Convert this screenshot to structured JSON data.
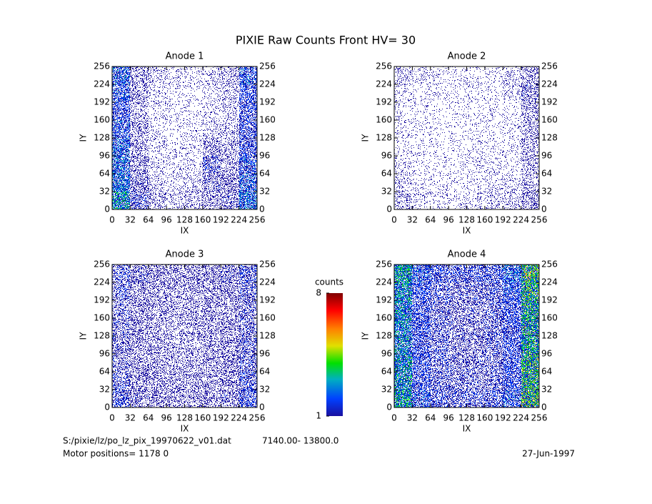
{
  "title": "PIXIE Raw Counts Front HV= 30",
  "chart_data": [
    {
      "type": "heatmap",
      "title": "Anode 1",
      "x_label": "IX",
      "y_label": "IY",
      "xlim": [
        0,
        256
      ],
      "ylim": [
        0,
        256
      ],
      "xticks": [
        0,
        32,
        64,
        96,
        128,
        160,
        192,
        224,
        256
      ],
      "yticks": [
        0,
        32,
        64,
        96,
        128,
        160,
        192,
        224,
        256
      ],
      "zlim": [
        1,
        8
      ],
      "cell_values": [
        [
          1.6,
          0.6,
          0.3,
          0.2,
          0.25,
          0.4,
          0.5,
          1.3
        ],
        [
          1.3,
          0.5,
          0.2,
          0.15,
          0.2,
          0.5,
          0.45,
          1.1
        ],
        [
          1.2,
          0.45,
          0.15,
          0.15,
          0.15,
          0.6,
          0.35,
          1.0
        ],
        [
          1.1,
          0.4,
          0.15,
          0.12,
          0.15,
          0.4,
          0.3,
          0.9
        ],
        [
          1.0,
          0.35,
          0.12,
          0.12,
          0.12,
          0.2,
          0.25,
          0.8
        ],
        [
          0.9,
          0.3,
          0.12,
          0.1,
          0.1,
          0.15,
          0.2,
          0.8
        ],
        [
          1.0,
          0.35,
          0.15,
          0.12,
          0.12,
          0.15,
          0.25,
          0.9
        ],
        [
          1.1,
          0.4,
          0.2,
          0.15,
          0.15,
          0.2,
          0.3,
          1.0
        ]
      ]
    },
    {
      "type": "heatmap",
      "title": "Anode 2",
      "x_label": "IX",
      "y_label": "IY",
      "xlim": [
        0,
        256
      ],
      "ylim": [
        0,
        256
      ],
      "xticks": [
        0,
        32,
        64,
        96,
        128,
        160,
        192,
        224,
        256
      ],
      "yticks": [
        0,
        32,
        64,
        96,
        128,
        160,
        192,
        224,
        256
      ],
      "zlim": [
        1,
        8
      ],
      "cell_values": [
        [
          0.3,
          0.15,
          0.12,
          0.12,
          0.15,
          0.2,
          0.2,
          0.4
        ],
        [
          0.2,
          0.12,
          0.1,
          0.1,
          0.12,
          0.15,
          0.15,
          0.3
        ],
        [
          0.15,
          0.1,
          0.08,
          0.1,
          0.12,
          0.12,
          0.12,
          0.3
        ],
        [
          0.12,
          0.1,
          0.08,
          0.08,
          0.1,
          0.1,
          0.12,
          0.3
        ],
        [
          0.12,
          0.08,
          0.08,
          0.08,
          0.08,
          0.08,
          0.1,
          0.3
        ],
        [
          0.12,
          0.1,
          0.08,
          0.08,
          0.08,
          0.08,
          0.1,
          0.35
        ],
        [
          0.15,
          0.1,
          0.1,
          0.1,
          0.1,
          0.1,
          0.15,
          0.5
        ],
        [
          0.2,
          0.15,
          0.12,
          0.12,
          0.12,
          0.12,
          0.2,
          0.45
        ]
      ]
    },
    {
      "type": "heatmap",
      "title": "Anode 3",
      "x_label": "IX",
      "y_label": "IY",
      "xlim": [
        0,
        256
      ],
      "ylim": [
        0,
        256
      ],
      "xticks": [
        0,
        32,
        64,
        96,
        128,
        160,
        192,
        224,
        256
      ],
      "yticks": [
        0,
        32,
        64,
        96,
        128,
        160,
        192,
        224,
        256
      ],
      "zlim": [
        1,
        8
      ],
      "cell_values": [
        [
          0.7,
          0.5,
          0.45,
          0.4,
          0.4,
          0.45,
          0.5,
          0.8
        ],
        [
          0.6,
          0.45,
          0.4,
          0.4,
          0.4,
          0.4,
          0.45,
          0.7
        ],
        [
          0.55,
          0.45,
          0.4,
          0.35,
          0.35,
          0.4,
          0.45,
          0.6
        ],
        [
          0.55,
          0.45,
          0.4,
          0.35,
          0.35,
          0.4,
          0.45,
          0.6
        ],
        [
          0.55,
          0.45,
          0.4,
          0.35,
          0.35,
          0.4,
          0.45,
          0.55
        ],
        [
          0.55,
          0.45,
          0.4,
          0.35,
          0.35,
          0.4,
          0.4,
          0.55
        ],
        [
          0.6,
          0.45,
          0.4,
          0.4,
          0.4,
          0.4,
          0.45,
          0.6
        ],
        [
          0.6,
          0.5,
          0.45,
          0.4,
          0.4,
          0.45,
          0.5,
          0.7
        ]
      ]
    },
    {
      "type": "heatmap",
      "title": "Anode 4",
      "x_label": "IX",
      "y_label": "IY",
      "xlim": [
        0,
        256
      ],
      "ylim": [
        0,
        256
      ],
      "xticks": [
        0,
        32,
        64,
        96,
        128,
        160,
        192,
        224,
        256
      ],
      "yticks": [
        0,
        32,
        64,
        96,
        128,
        160,
        192,
        224,
        256
      ],
      "zlim": [
        1,
        8
      ],
      "cell_values": [
        [
          1.8,
          1.0,
          0.7,
          0.6,
          0.6,
          0.7,
          1.0,
          2.4
        ],
        [
          1.6,
          0.9,
          0.6,
          0.55,
          0.55,
          0.6,
          0.9,
          2.2
        ],
        [
          1.6,
          0.9,
          0.6,
          0.55,
          0.55,
          0.6,
          0.9,
          2.2
        ],
        [
          1.5,
          0.85,
          0.6,
          0.5,
          0.5,
          0.6,
          0.9,
          2.0
        ],
        [
          1.5,
          0.85,
          0.6,
          0.5,
          0.5,
          0.6,
          0.9,
          2.0
        ],
        [
          1.5,
          0.85,
          0.6,
          0.5,
          0.5,
          0.6,
          0.9,
          2.0
        ],
        [
          1.6,
          0.9,
          0.65,
          0.55,
          0.55,
          0.65,
          1.0,
          2.2
        ],
        [
          1.8,
          1.0,
          0.8,
          0.7,
          0.7,
          0.8,
          1.1,
          2.4
        ]
      ]
    }
  ],
  "colorbar": {
    "label": "counts",
    "zlim": [
      1,
      8
    ],
    "ticks": [
      1,
      8
    ]
  },
  "footer": {
    "file": "S:/pixie/lz/po_lz_pix_19970622_v01.dat",
    "range": "7140.00- 13800.0",
    "motor": "Motor positions= 1178 0",
    "date": "27-Jun-1997"
  }
}
